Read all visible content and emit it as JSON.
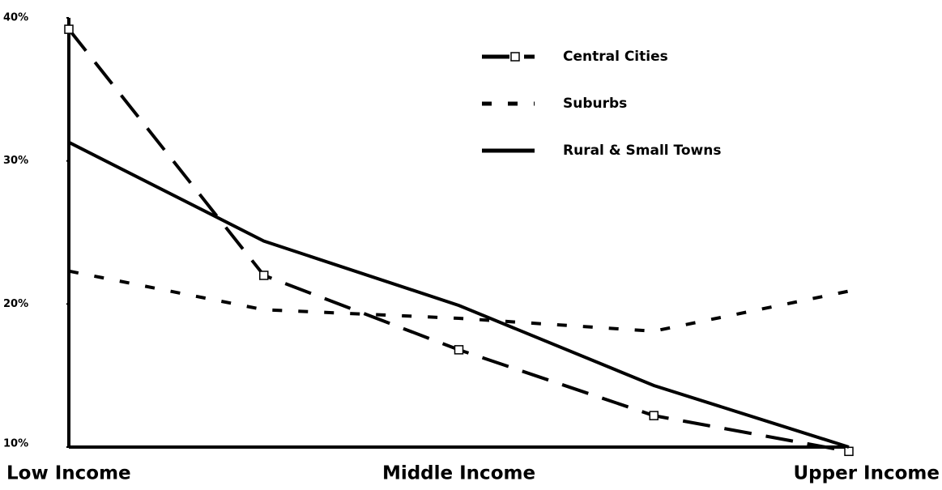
{
  "chart_data": {
    "type": "line",
    "categories": [
      "Low Income",
      null,
      "Middle Income",
      null,
      "Upper Income"
    ],
    "series": [
      {
        "name": "Central Cities",
        "color": "#000000",
        "dash": "34,18",
        "markers": true,
        "values": [
          39.2,
          22.0,
          16.8,
          12.2,
          9.7
        ]
      },
      {
        "name": "Suburbs",
        "color": "#000000",
        "dash": "12,20",
        "markers": false,
        "values": [
          22.3,
          19.6,
          19.0,
          18.1,
          20.9
        ]
      },
      {
        "name": "Rural & Small Towns",
        "color": "#000000",
        "dash": null,
        "markers": false,
        "values": [
          31.3,
          24.4,
          19.9,
          14.3,
          10.0
        ]
      }
    ],
    "ylim": [
      10,
      40
    ],
    "yticks": [
      {
        "value": 10,
        "label": "10%"
      },
      {
        "value": 20,
        "label": "20%"
      },
      {
        "value": 30,
        "label": "30%"
      },
      {
        "value": 40,
        "label": "40%"
      }
    ],
    "grid": false,
    "legend": "top-right"
  }
}
